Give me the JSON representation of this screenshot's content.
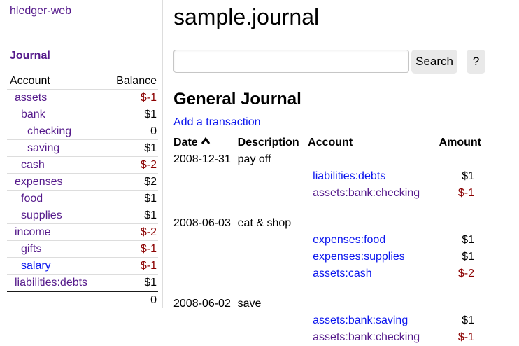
{
  "app": {
    "title": "hledger-web"
  },
  "colors": {
    "link_unvisited": "#0b16ee",
    "link_visited": "#551A8B",
    "negative": "#8B0000",
    "divider": "#dddddd",
    "button_bg": "#e9e9e9"
  },
  "sidebar": {
    "journal_label": "Journal",
    "headers": {
      "account": "Account",
      "balance": "Balance"
    },
    "accounts": [
      {
        "name": "assets",
        "indent": 0,
        "balance": "$-1",
        "negative": true,
        "visited": true
      },
      {
        "name": "bank",
        "indent": 1,
        "balance": "$1",
        "negative": false,
        "visited": true
      },
      {
        "name": "checking",
        "indent": 2,
        "balance": "0",
        "negative": false,
        "visited": true
      },
      {
        "name": "saving",
        "indent": 2,
        "balance": "$1",
        "negative": false,
        "visited": true
      },
      {
        "name": "cash",
        "indent": 1,
        "balance": "$-2",
        "negative": true,
        "visited": true
      },
      {
        "name": "expenses",
        "indent": 0,
        "balance": "$2",
        "negative": false,
        "visited": true
      },
      {
        "name": "food",
        "indent": 1,
        "balance": "$1",
        "negative": false,
        "visited": true
      },
      {
        "name": "supplies",
        "indent": 1,
        "balance": "$1",
        "negative": false,
        "visited": true
      },
      {
        "name": "income",
        "indent": 0,
        "balance": "$-2",
        "negative": true,
        "visited": true
      },
      {
        "name": "gifts",
        "indent": 1,
        "balance": "$-1",
        "negative": true,
        "visited": true
      },
      {
        "name": "salary",
        "indent": 1,
        "balance": "$-1",
        "negative": true,
        "visited": false
      },
      {
        "name": "liabilities:debts",
        "indent": 0,
        "balance": "$1",
        "negative": false,
        "visited": true
      }
    ],
    "total": "0"
  },
  "main": {
    "title": "sample.journal",
    "search": {
      "value": "",
      "placeholder": "",
      "button_label": "Search",
      "help_label": "?"
    },
    "journal": {
      "heading": "General Journal",
      "add_label": "Add a transaction",
      "headers": {
        "date": "Date",
        "description": "Description",
        "account": "Account",
        "amount": "Amount"
      },
      "sort_icon": "chevron-up-icon",
      "sort_column": "Date",
      "transactions": [
        {
          "date": "2008-12-31",
          "description": "pay off",
          "postings": [
            {
              "account": "liabilities:debts",
              "amount": "$1",
              "negative": false,
              "visited": false
            },
            {
              "account": "assets:bank:checking",
              "amount": "$-1",
              "negative": true,
              "visited": true
            }
          ]
        },
        {
          "date": "2008-06-03",
          "description": "eat & shop",
          "postings": [
            {
              "account": "expenses:food",
              "amount": "$1",
              "negative": false,
              "visited": false
            },
            {
              "account": "expenses:supplies",
              "amount": "$1",
              "negative": false,
              "visited": false
            },
            {
              "account": "assets:cash",
              "amount": "$-2",
              "negative": true,
              "visited": false
            }
          ]
        },
        {
          "date": "2008-06-02",
          "description": "save",
          "postings": [
            {
              "account": "assets:bank:saving",
              "amount": "$1",
              "negative": false,
              "visited": false
            },
            {
              "account": "assets:bank:checking",
              "amount": "$-1",
              "negative": true,
              "visited": true
            }
          ]
        }
      ]
    }
  }
}
